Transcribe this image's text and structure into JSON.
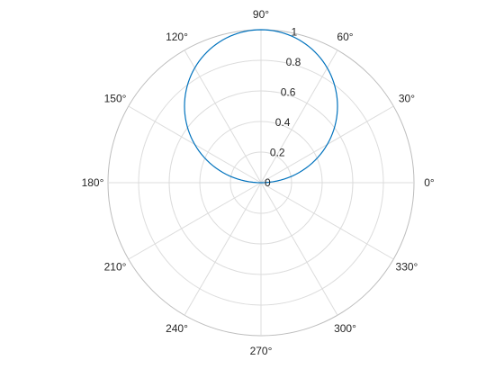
{
  "chart_data": {
    "type": "line",
    "subtype": "polar",
    "title": "",
    "theta_ticks": [
      0,
      30,
      60,
      90,
      120,
      150,
      180,
      210,
      240,
      270,
      300,
      330
    ],
    "theta_tick_labels": [
      "0°",
      "30°",
      "60°",
      "90°",
      "120°",
      "150°",
      "180°",
      "210°",
      "240°",
      "270°",
      "300°",
      "330°"
    ],
    "r_ticks": [
      0,
      0.2,
      0.4,
      0.6,
      0.8,
      1
    ],
    "r_tick_labels": [
      "0",
      "0.2",
      "0.4",
      "0.6",
      "0.8",
      "1"
    ],
    "rlim": [
      0,
      1
    ],
    "grid": true,
    "series": [
      {
        "expression": "r = sin(theta)",
        "theta_deg": [
          0,
          15,
          30,
          45,
          60,
          75,
          90,
          105,
          120,
          135,
          150,
          165,
          180
        ],
        "r": [
          0,
          0.259,
          0.5,
          0.707,
          0.866,
          0.966,
          1,
          0.966,
          0.866,
          0.707,
          0.5,
          0.259,
          0
        ],
        "color": "#0072BD"
      }
    ]
  },
  "colors": {
    "line": "#0072BD",
    "grid": "#dcdcdc",
    "outer_ring": "#bdbdbd",
    "text": "#262626"
  }
}
